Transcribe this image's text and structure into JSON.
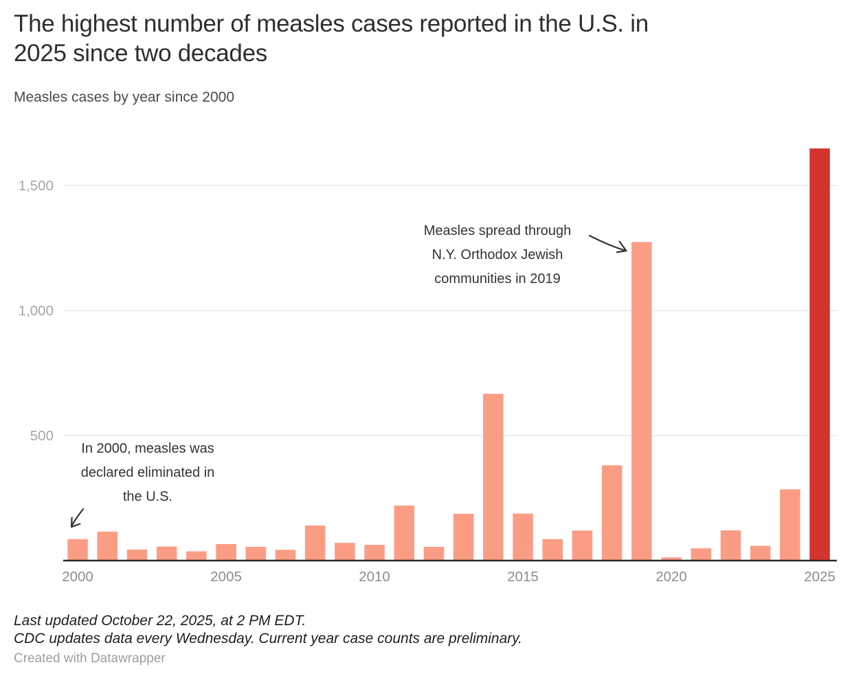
{
  "header": {
    "title_lines": [
      "The highest number of measles cases reported in the U.S. in",
      "2025 since two decades"
    ]
  },
  "chart_data": {
    "type": "bar",
    "title": "The highest number of measles cases reported in the U.S. in 2025 since two decades",
    "subtitle": "Measles cases by year since 2000",
    "xlabel": "",
    "ylabel": "",
    "categories": [
      2000,
      2001,
      2002,
      2003,
      2004,
      2005,
      2006,
      2007,
      2008,
      2009,
      2010,
      2011,
      2012,
      2013,
      2014,
      2015,
      2016,
      2017,
      2018,
      2019,
      2020,
      2021,
      2022,
      2023,
      2024,
      2025
    ],
    "values": [
      86,
      116,
      44,
      56,
      37,
      66,
      55,
      43,
      140,
      71,
      63,
      220,
      55,
      187,
      667,
      188,
      86,
      120,
      381,
      1274,
      13,
      49,
      121,
      59,
      285,
      1648
    ],
    "ylim": [
      0,
      1660
    ],
    "yticks": [
      {
        "value": 500,
        "label": "500"
      },
      {
        "value": 1000,
        "label": "1,000"
      },
      {
        "value": 1500,
        "label": "1,500"
      }
    ],
    "xticks": [
      2000,
      2005,
      2010,
      2015,
      2020,
      2025
    ],
    "grid": "horizontal",
    "legend": "none",
    "highlight_year": 2025,
    "bar_color": "#fb9d85",
    "highlight_color": "#d3342e",
    "grid_color": "#e9e9e9",
    "axis_color": "#2b2b2b",
    "ytick_color": "#a5a5a5",
    "xtick_color": "#8d8d8d",
    "annotations": [
      {
        "id": "ny-2019",
        "lines": [
          "Measles spread through",
          "N.Y. Orthodox Jewish",
          "communities in 2019"
        ],
        "points_to_year": 2019
      },
      {
        "id": "eliminated-2000",
        "lines": [
          "In 2000, measles was",
          "declared eliminated in",
          "the U.S."
        ],
        "points_to_year": 2000
      }
    ]
  },
  "footer": {
    "updated": "Last updated October 22, 2025, at 2 PM EDT.",
    "note": "CDC updates data every Wednesday. Current year case counts are preliminary.",
    "credit": "Created with Datawrapper"
  }
}
